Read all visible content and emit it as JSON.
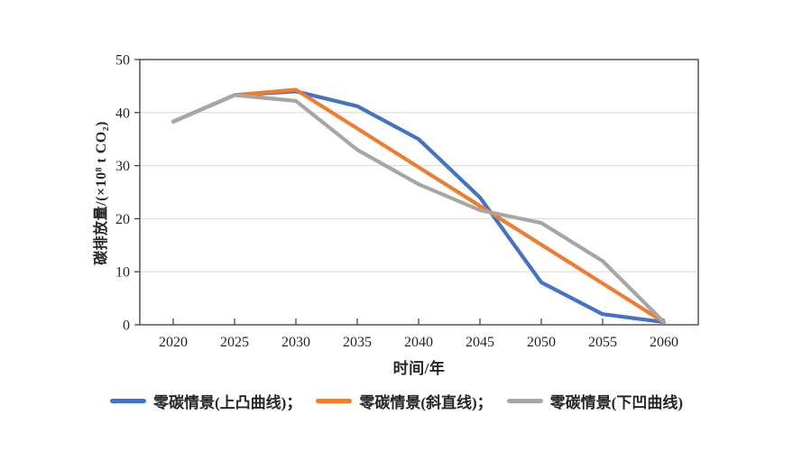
{
  "chart_data": {
    "type": "line",
    "x": [
      2020,
      2025,
      2030,
      2035,
      2040,
      2045,
      2050,
      2055,
      2060
    ],
    "series": [
      {
        "name": "零碳情景(上凸曲线)",
        "color": "#4472C4",
        "values": [
          38.3,
          43.3,
          44.0,
          41.2,
          35.0,
          24.0,
          8.0,
          2.0,
          0.5
        ]
      },
      {
        "name": "零碳情景(斜直线)",
        "color": "#ED7D31",
        "values": [
          38.3,
          43.3,
          44.3,
          37.0,
          29.7,
          22.4,
          15.1,
          7.8,
          0.5
        ]
      },
      {
        "name": "零碳情景(下凹曲线)",
        "color": "#A6A6A6",
        "values": [
          38.3,
          43.3,
          42.2,
          33.0,
          26.5,
          21.6,
          19.2,
          12.0,
          0.5
        ]
      }
    ],
    "title": "",
    "xlabel": "时间/年",
    "ylabel": "碳排放量/(×10⁸ t CO₂)",
    "ylim": [
      0,
      50
    ],
    "yticks": [
      0,
      10,
      20,
      30,
      40,
      50
    ],
    "grid": "horizontal",
    "legend_position": "bottom",
    "colors": {
      "grid": "#d9d9d9",
      "axis": "#3a3a3a",
      "background": "#ffffff"
    }
  },
  "legend": {
    "items": [
      {
        "label": "零碳情景(上凸曲线)；"
      },
      {
        "label": "零碳情景(斜直线)；"
      },
      {
        "label": "零碳情景(下凹曲线)"
      }
    ]
  }
}
